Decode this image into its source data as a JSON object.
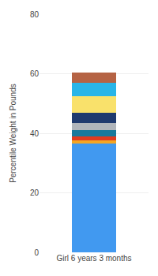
{
  "chart_data": {
    "type": "bar",
    "stacked": true,
    "categories": [
      "Girl 6 years 3 months"
    ],
    "ylabel": "Percentile Weight in Pounds",
    "series": [
      {
        "color": "#4199f0",
        "values": [
          36.5
        ]
      },
      {
        "color": "#f5a623",
        "values": [
          1.0
        ]
      },
      {
        "color": "#e03c1f",
        "values": [
          1.5
        ]
      },
      {
        "color": "#1a7a9c",
        "values": [
          2.0
        ]
      },
      {
        "color": "#b0b5bb",
        "values": [
          2.5
        ]
      },
      {
        "color": "#1f3a6e",
        "values": [
          3.5
        ]
      },
      {
        "color": "#f9e16b",
        "values": [
          5.5
        ]
      },
      {
        "color": "#29b5e8",
        "values": [
          4.5
        ]
      },
      {
        "color": "#b56344",
        "values": [
          3.5
        ]
      }
    ],
    "ylim": [
      0,
      80
    ],
    "yticks": [
      0,
      20,
      40,
      60,
      80
    ],
    "grid": true
  }
}
